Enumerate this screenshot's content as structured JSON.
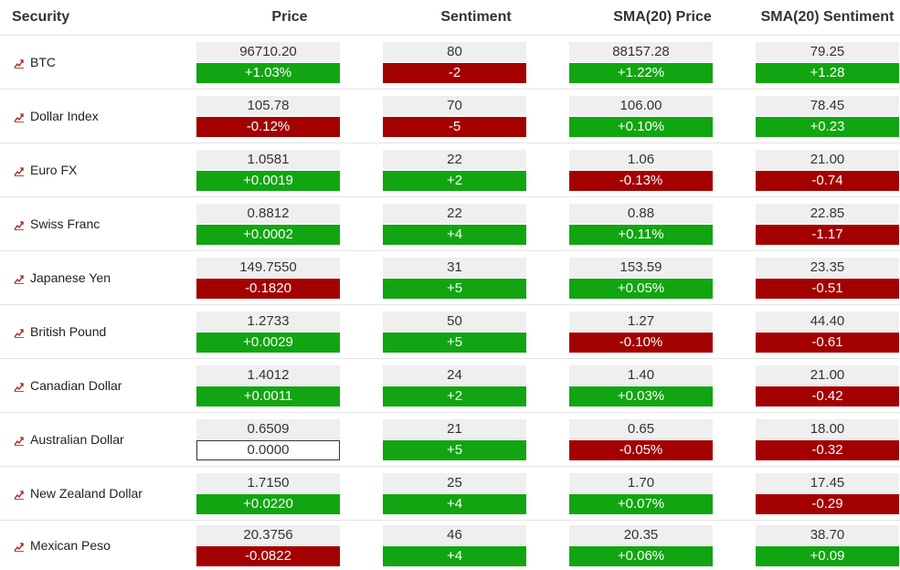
{
  "headers": {
    "security": "Security",
    "price": "Price",
    "sentiment": "Sentiment",
    "sma_price": "SMA(20) Price",
    "sma_sentiment": "SMA(20) Sentiment"
  },
  "icon": "chart-trend-icon",
  "colors": {
    "up": "#11a511",
    "down": "#a30000",
    "value_bg": "#efefef",
    "icon": "#b31b1b"
  },
  "rows": [
    {
      "name": "BTC",
      "price": {
        "value": "96710.20",
        "change": "+1.03%",
        "dir": "up"
      },
      "sentiment": {
        "value": "80",
        "change": "-2",
        "dir": "down"
      },
      "sma_price": {
        "value": "88157.28",
        "change": "+1.22%",
        "dir": "up"
      },
      "sma_sentiment": {
        "value": "79.25",
        "change": "+1.28",
        "dir": "up"
      }
    },
    {
      "name": "Dollar Index",
      "price": {
        "value": "105.78",
        "change": "-0.12%",
        "dir": "down"
      },
      "sentiment": {
        "value": "70",
        "change": "-5",
        "dir": "down"
      },
      "sma_price": {
        "value": "106.00",
        "change": "+0.10%",
        "dir": "up"
      },
      "sma_sentiment": {
        "value": "78.45",
        "change": "+0.23",
        "dir": "up"
      }
    },
    {
      "name": "Euro FX",
      "price": {
        "value": "1.0581",
        "change": "+0.0019",
        "dir": "up"
      },
      "sentiment": {
        "value": "22",
        "change": "+2",
        "dir": "up"
      },
      "sma_price": {
        "value": "1.06",
        "change": "-0.13%",
        "dir": "down"
      },
      "sma_sentiment": {
        "value": "21.00",
        "change": "-0.74",
        "dir": "down"
      }
    },
    {
      "name": "Swiss Franc",
      "price": {
        "value": "0.8812",
        "change": "+0.0002",
        "dir": "up"
      },
      "sentiment": {
        "value": "22",
        "change": "+4",
        "dir": "up"
      },
      "sma_price": {
        "value": "0.88",
        "change": "+0.11%",
        "dir": "up"
      },
      "sma_sentiment": {
        "value": "22.85",
        "change": "-1.17",
        "dir": "down"
      }
    },
    {
      "name": "Japanese Yen",
      "price": {
        "value": "149.7550",
        "change": "-0.1820",
        "dir": "down"
      },
      "sentiment": {
        "value": "31",
        "change": "+5",
        "dir": "up"
      },
      "sma_price": {
        "value": "153.59",
        "change": "+0.05%",
        "dir": "up"
      },
      "sma_sentiment": {
        "value": "23.35",
        "change": "-0.51",
        "dir": "down"
      }
    },
    {
      "name": "British Pound",
      "price": {
        "value": "1.2733",
        "change": "+0.0029",
        "dir": "up"
      },
      "sentiment": {
        "value": "50",
        "change": "+5",
        "dir": "up"
      },
      "sma_price": {
        "value": "1.27",
        "change": "-0.10%",
        "dir": "down"
      },
      "sma_sentiment": {
        "value": "44.40",
        "change": "-0.61",
        "dir": "down"
      }
    },
    {
      "name": "Canadian Dollar",
      "price": {
        "value": "1.4012",
        "change": "+0.0011",
        "dir": "up"
      },
      "sentiment": {
        "value": "24",
        "change": "+2",
        "dir": "up"
      },
      "sma_price": {
        "value": "1.40",
        "change": "+0.03%",
        "dir": "up"
      },
      "sma_sentiment": {
        "value": "21.00",
        "change": "-0.42",
        "dir": "down"
      }
    },
    {
      "name": "Australian Dollar",
      "price": {
        "value": "0.6509",
        "change": "0.0000",
        "dir": "flat"
      },
      "sentiment": {
        "value": "21",
        "change": "+5",
        "dir": "up"
      },
      "sma_price": {
        "value": "0.65",
        "change": "-0.05%",
        "dir": "down"
      },
      "sma_sentiment": {
        "value": "18.00",
        "change": "-0.32",
        "dir": "down"
      }
    },
    {
      "name": "New Zealand Dollar",
      "price": {
        "value": "1.7150",
        "change": "+0.0220",
        "dir": "up"
      },
      "sentiment": {
        "value": "25",
        "change": "+4",
        "dir": "up"
      },
      "sma_price": {
        "value": "1.70",
        "change": "+0.07%",
        "dir": "up"
      },
      "sma_sentiment": {
        "value": "17.45",
        "change": "-0.29",
        "dir": "down"
      }
    },
    {
      "name": "Mexican Peso",
      "price": {
        "value": "20.3756",
        "change": "-0.0822",
        "dir": "down"
      },
      "sentiment": {
        "value": "46",
        "change": "+4",
        "dir": "up"
      },
      "sma_price": {
        "value": "20.35",
        "change": "+0.06%",
        "dir": "up"
      },
      "sma_sentiment": {
        "value": "38.70",
        "change": "+0.09",
        "dir": "up"
      }
    }
  ]
}
